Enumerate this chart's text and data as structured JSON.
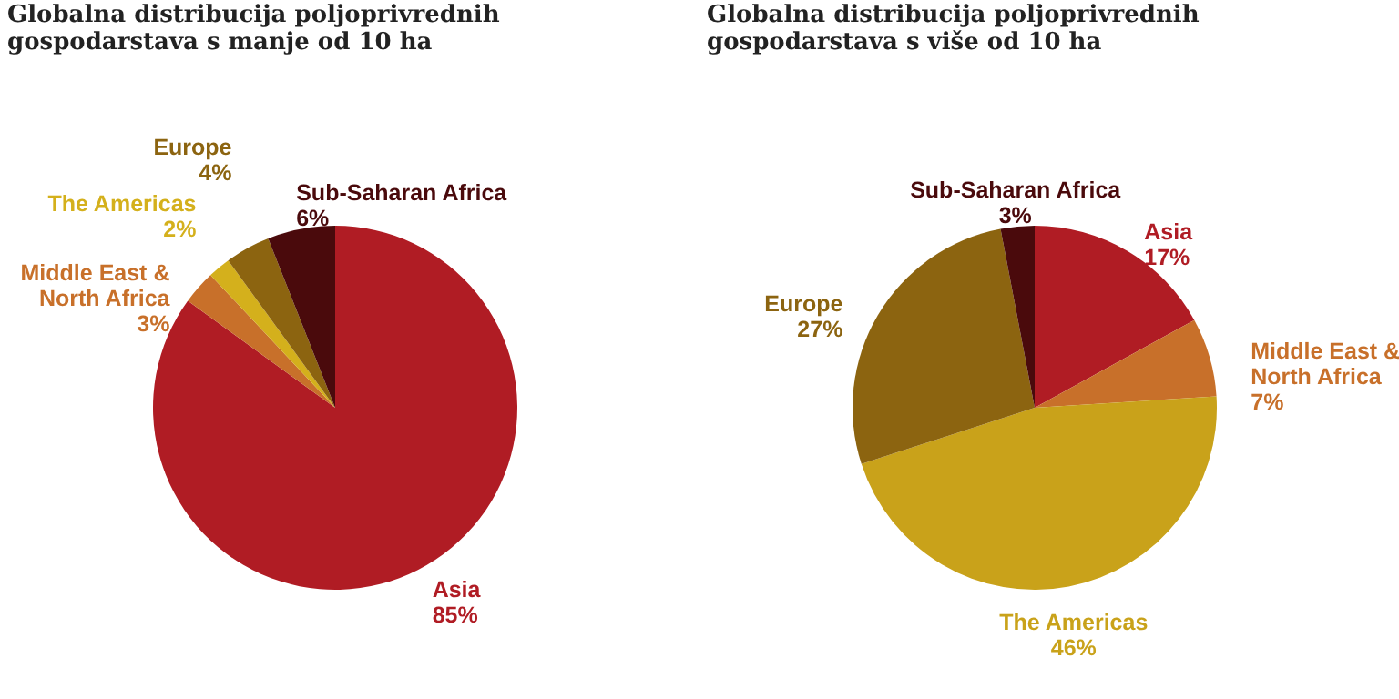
{
  "chart_data": [
    {
      "type": "pie",
      "title": "Globalna distribucija poljoprivrednih\ngospodarstava s manje od 10 ha",
      "categories": [
        "Asia",
        "Middle East &\nNorth Africa",
        "The Americas",
        "Europe",
        "Sub-Saharan Africa"
      ],
      "values": [
        85,
        3,
        2,
        4,
        6
      ],
      "value_labels": [
        "85%",
        "3%",
        "2%",
        "4%",
        "6%"
      ],
      "colors": [
        "#b01c24",
        "#c8702a",
        "#d4b01c",
        "#8c6410",
        "#4a0a0c"
      ]
    },
    {
      "type": "pie",
      "title": "Globalna distribucija poljoprivrednih\ngospodarstava s više od 10 ha",
      "categories": [
        "Asia",
        "Middle East &\nNorth Africa",
        "The Americas",
        "Europe",
        "Sub-Saharan Africa"
      ],
      "values": [
        17,
        7,
        46,
        27,
        3
      ],
      "value_labels": [
        "17%",
        "7%",
        "46%",
        "27%",
        "3%"
      ],
      "colors": [
        "#b01c24",
        "#c8702a",
        "#c9a21a",
        "#8c6410",
        "#4a0a0c"
      ]
    }
  ]
}
